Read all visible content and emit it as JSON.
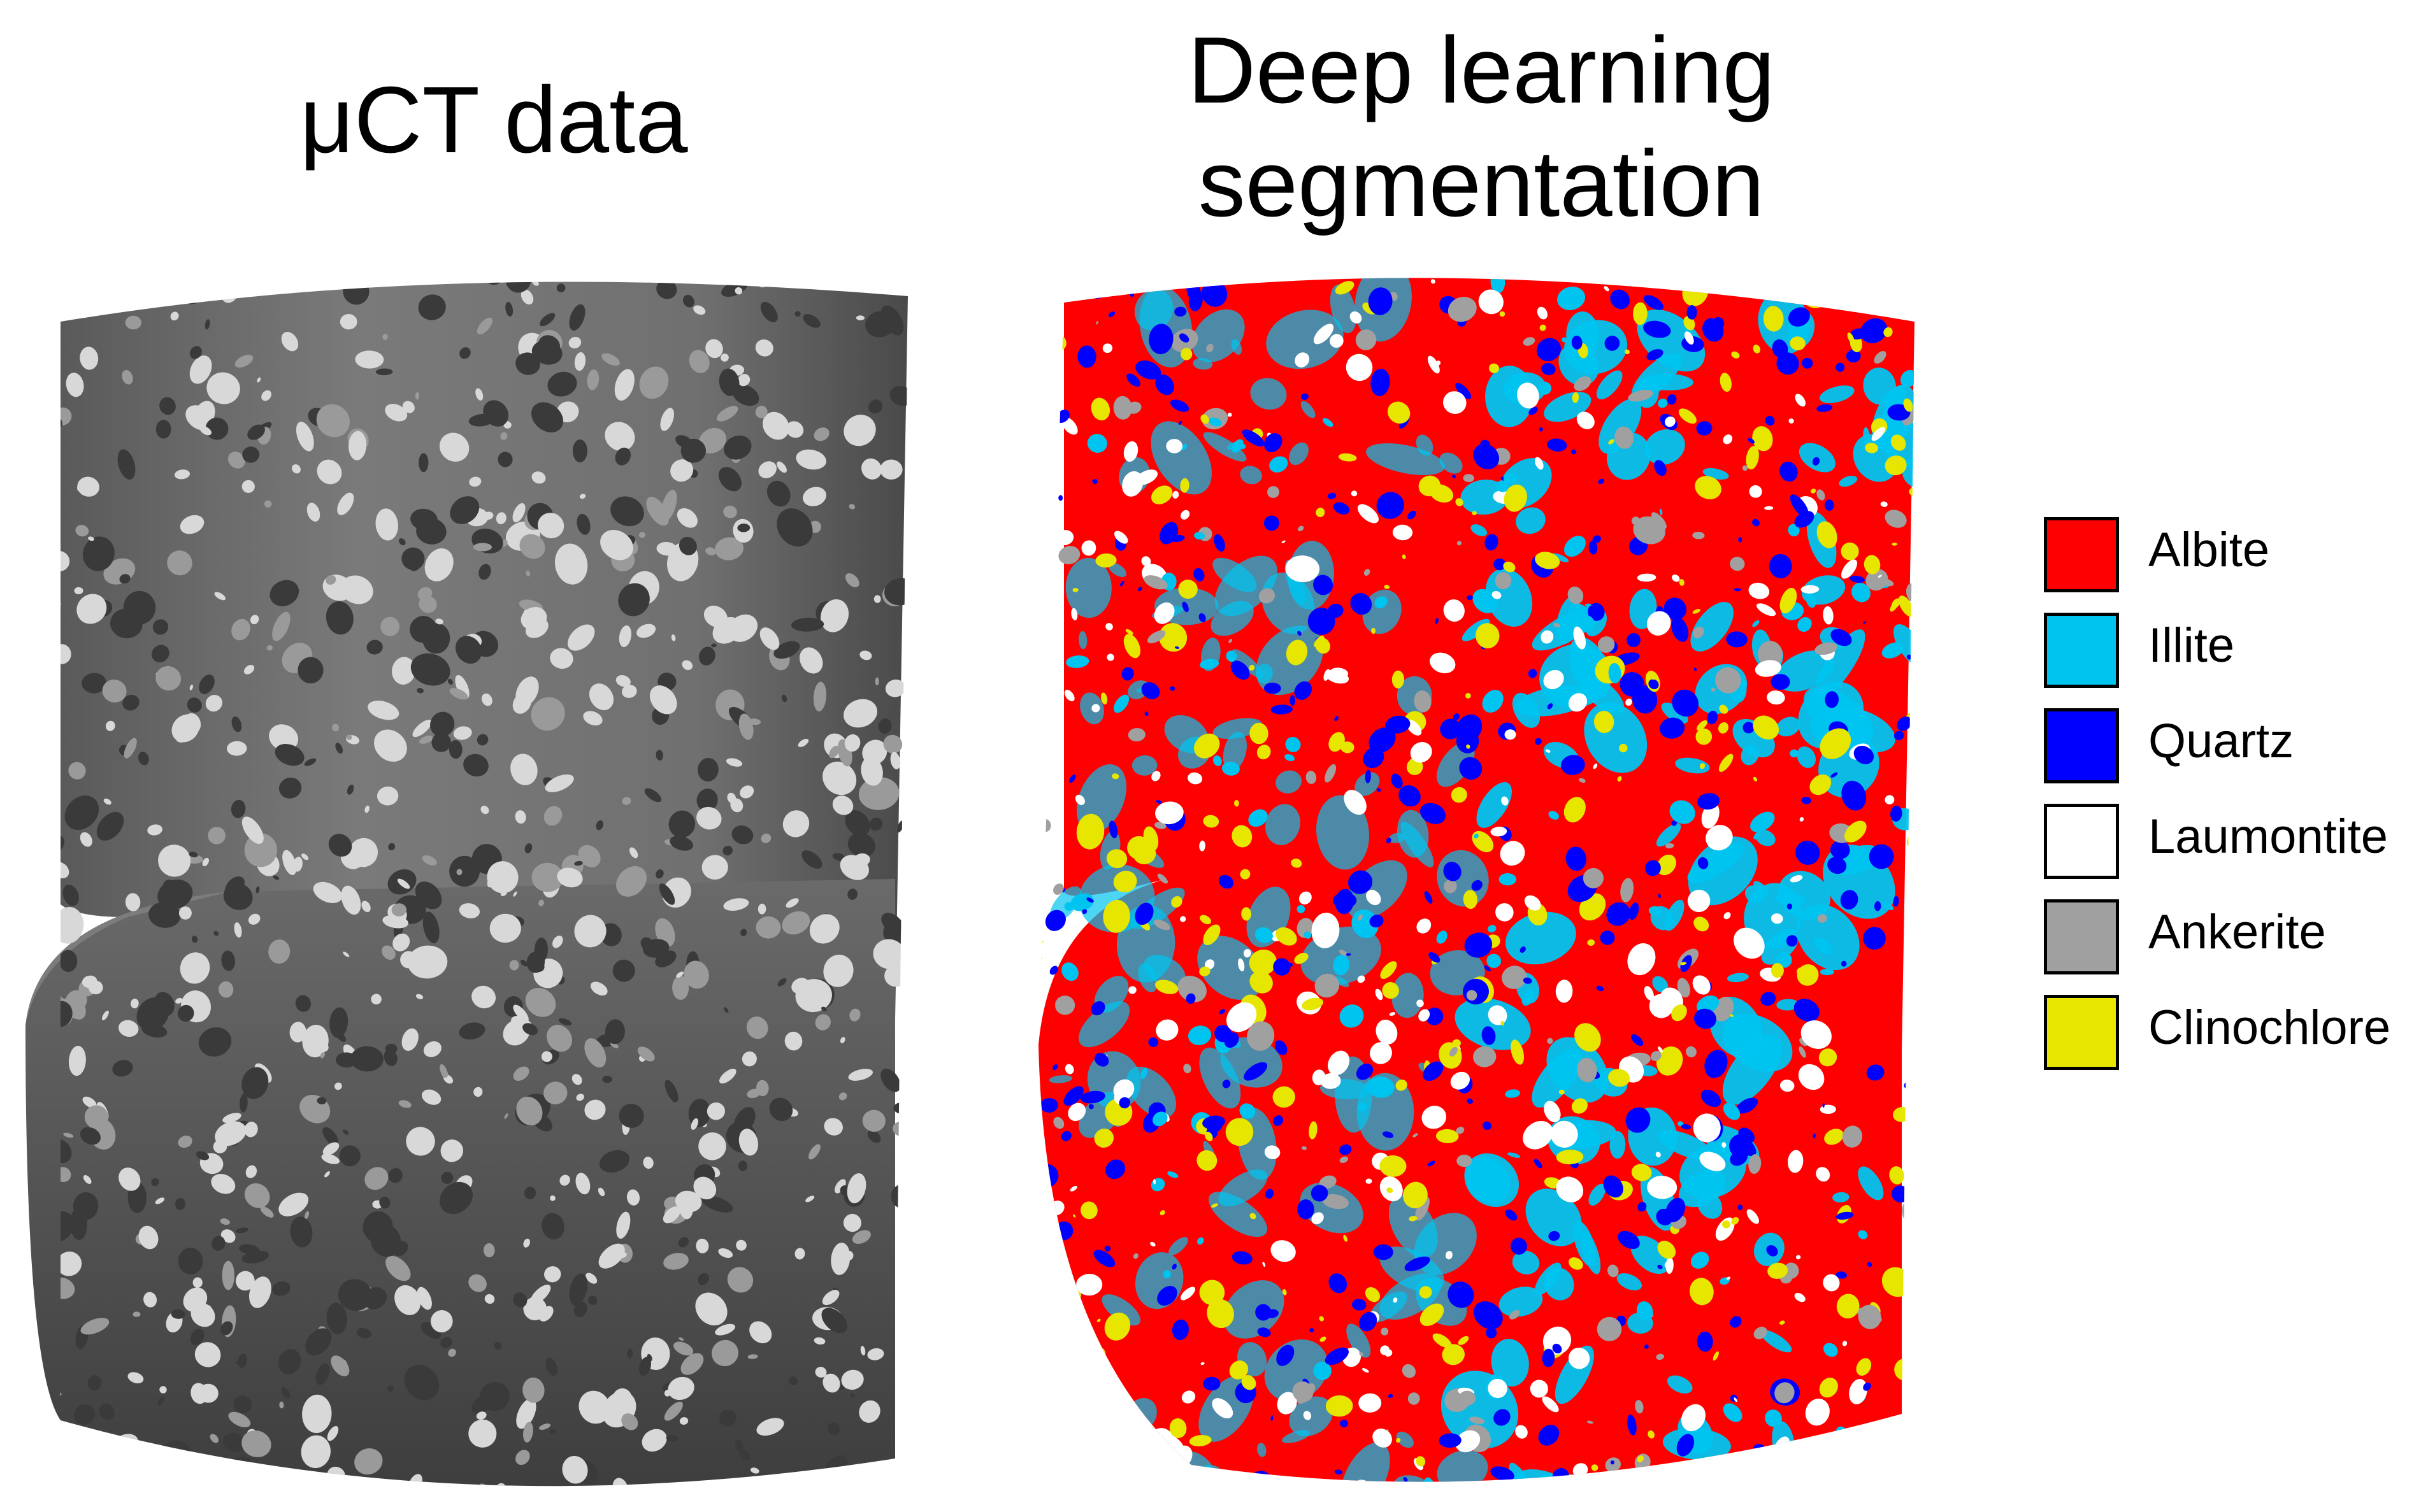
{
  "titles": {
    "left": "μCT data",
    "right": "Deep learning\nsegmentation"
  },
  "legend": [
    {
      "label": "Albite",
      "color": "#FF0000"
    },
    {
      "label": "Illite",
      "color": "#00C4F0"
    },
    {
      "label": "Quartz",
      "color": "#0000FF"
    },
    {
      "label": "Laumontite",
      "color": "#FFFFFF"
    },
    {
      "label": "Ankerite",
      "color": "#A0A0A0"
    },
    {
      "label": "Clinochlore",
      "color": "#E6E600"
    }
  ],
  "sample_colors": {
    "ct_base": "#6E6E6E",
    "ct_dark": "#3A3A3A",
    "ct_light": "#D8D8D8"
  }
}
